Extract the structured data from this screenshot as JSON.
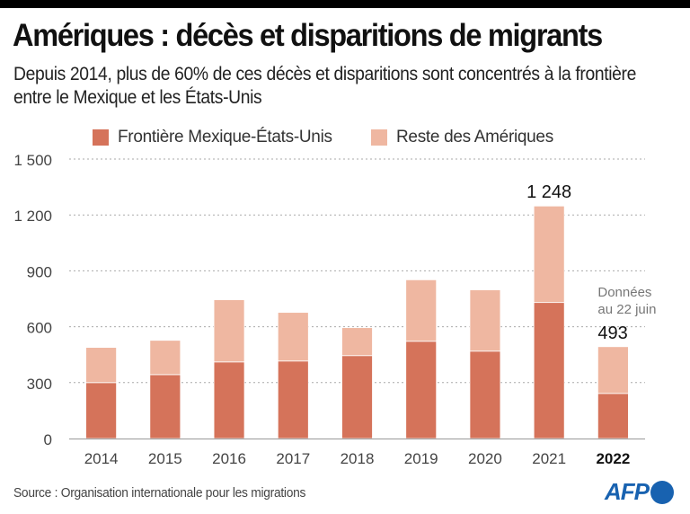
{
  "header": {
    "title": "Amériques : décès et disparitions de migrants",
    "subtitle": "Depuis 2014, plus de 60% de ces décès et disparitions sont concentrés à la frontière entre le Mexique et les États-Unis"
  },
  "legend": [
    {
      "label": "Frontière Mexique-États-Unis",
      "color": "#d5735a"
    },
    {
      "label": "Reste des Amériques",
      "color": "#efb7a1"
    }
  ],
  "footer": {
    "source": "Source : Organisation internationale pour les migrations",
    "logo": "AFP"
  },
  "chart_data": {
    "type": "bar",
    "stacked": true,
    "title": "Amériques : décès et disparitions de migrants",
    "xlabel": "",
    "ylabel": "",
    "categories": [
      "2014",
      "2015",
      "2016",
      "2017",
      "2018",
      "2019",
      "2020",
      "2021",
      "2022"
    ],
    "series": [
      {
        "name": "Frontière Mexique-États-Unis",
        "color": "#d5735a",
        "values": [
          300,
          343,
          411,
          416,
          445,
          522,
          469,
          730,
          242
        ]
      },
      {
        "name": "Reste des Amériques",
        "color": "#efb7a1",
        "values": [
          189,
          184,
          334,
          261,
          150,
          330,
          329,
          518,
          251
        ]
      }
    ],
    "totals": [
      489,
      527,
      745,
      677,
      595,
      852,
      798,
      1248,
      493
    ],
    "ylim": [
      0,
      1500
    ],
    "yticks": [
      0,
      300,
      600,
      900,
      1200,
      1500
    ],
    "ytick_labels": [
      "0",
      "300",
      "600",
      "900",
      "1 200",
      "1 500"
    ],
    "grid": true,
    "legend_position": "top",
    "annotations": [
      {
        "category": "2021",
        "text": "1 248"
      },
      {
        "category": "2022",
        "note": "Données au 22 juin",
        "text": "493"
      }
    ],
    "highlight_category": "2022"
  }
}
